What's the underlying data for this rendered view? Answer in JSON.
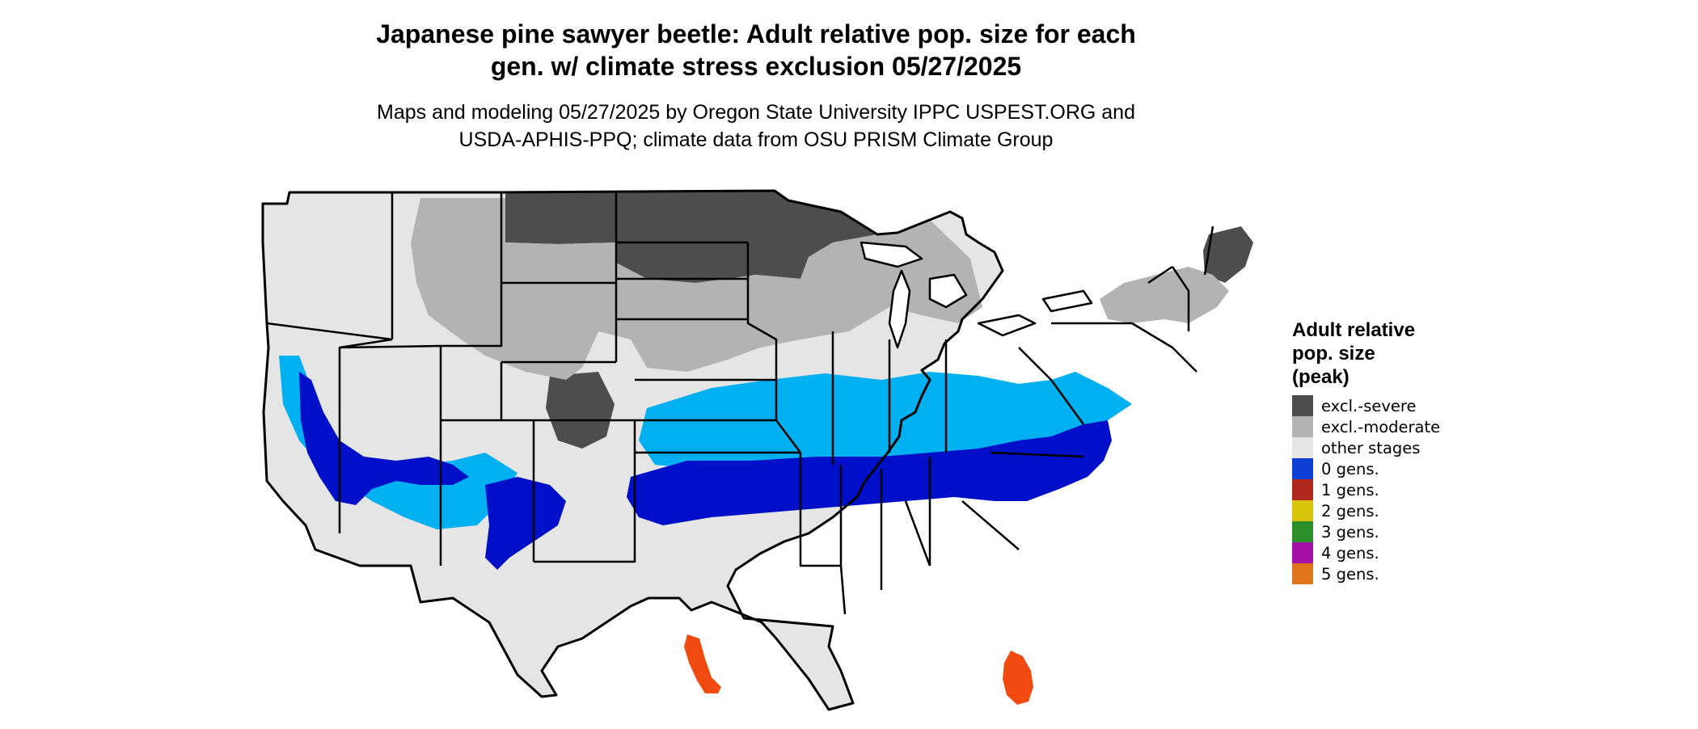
{
  "title_line1": "Japanese pine sawyer beetle: Adult relative pop. size for each",
  "title_line2": "gen. w/ climate stress exclusion 05/27/2025",
  "subtitle_line1": "Maps and modeling 05/27/2025 by Oregon State University IPPC USPEST.ORG and",
  "subtitle_line2": "USDA-APHIS-PPQ; climate data from OSU PRISM Climate Group",
  "legend": {
    "title_line1": "Adult relative",
    "title_line2": "pop. size",
    "title_line3": "(peak)",
    "items": [
      {
        "label": "excl.-severe",
        "color": "#4d4d4d"
      },
      {
        "label": "excl.-moderate",
        "color": "#b3b3b3"
      },
      {
        "label": "other stages",
        "color": "#e5e5e5"
      },
      {
        "label": "0 gens.",
        "color": "#0b3fd6"
      },
      {
        "label": "1 gens.",
        "color": "#b0271b"
      },
      {
        "label": "2 gens.",
        "color": "#d8c40b"
      },
      {
        "label": "3 gens.",
        "color": "#2a8f2a"
      },
      {
        "label": "4 gens.",
        "color": "#a60fa6"
      },
      {
        "label": "5 gens.",
        "color": "#e0741c"
      }
    ]
  },
  "map_colors": {
    "severe": "#4d4d4d",
    "moderate": "#b3b3b3",
    "other": "#e5e5e5",
    "zero_dark": "#0010c8",
    "zero_mid": "#0a5cf0",
    "zero_light": "#00b0f0",
    "orange": "#f04a10",
    "border": "#000000"
  }
}
